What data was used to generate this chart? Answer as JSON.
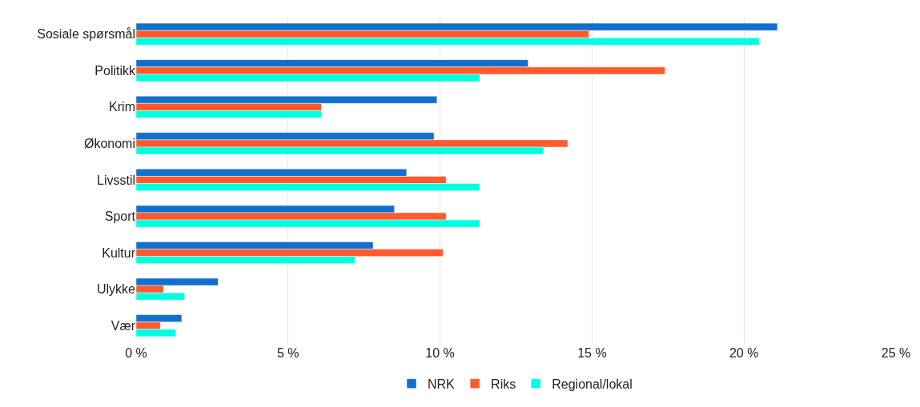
{
  "chart_data": {
    "type": "bar",
    "orientation": "horizontal",
    "categories": [
      "Sosiale spørsmål",
      "Politikk",
      "Krim",
      "Økonomi",
      "Livsstil",
      "Sport",
      "Kultur",
      "Ulykke",
      "Vær"
    ],
    "series": [
      {
        "name": "NRK",
        "color": "#1170cc",
        "values": [
          21.1,
          12.9,
          9.9,
          9.8,
          8.9,
          8.5,
          7.8,
          2.7,
          1.5
        ]
      },
      {
        "name": "Riks",
        "color": "#ff5a2e",
        "values": [
          14.9,
          17.4,
          6.1,
          14.2,
          10.2,
          10.2,
          10.1,
          0.9,
          0.8
        ]
      },
      {
        "name": "Regional/lokal",
        "color": "#00ffe1",
        "values": [
          20.5,
          11.3,
          6.1,
          13.4,
          11.3,
          11.3,
          7.2,
          1.6,
          1.3
        ]
      }
    ],
    "xlim": [
      0,
      25
    ],
    "xticks": [
      {
        "value": 0,
        "label": "0 %"
      },
      {
        "value": 5,
        "label": "5 %"
      },
      {
        "value": 10,
        "label": "10 %"
      },
      {
        "value": 15,
        "label": "15 %"
      },
      {
        "value": 20,
        "label": "20 %"
      },
      {
        "value": 25,
        "label": "25 %"
      }
    ],
    "grid": "x",
    "legend": "bottom"
  }
}
